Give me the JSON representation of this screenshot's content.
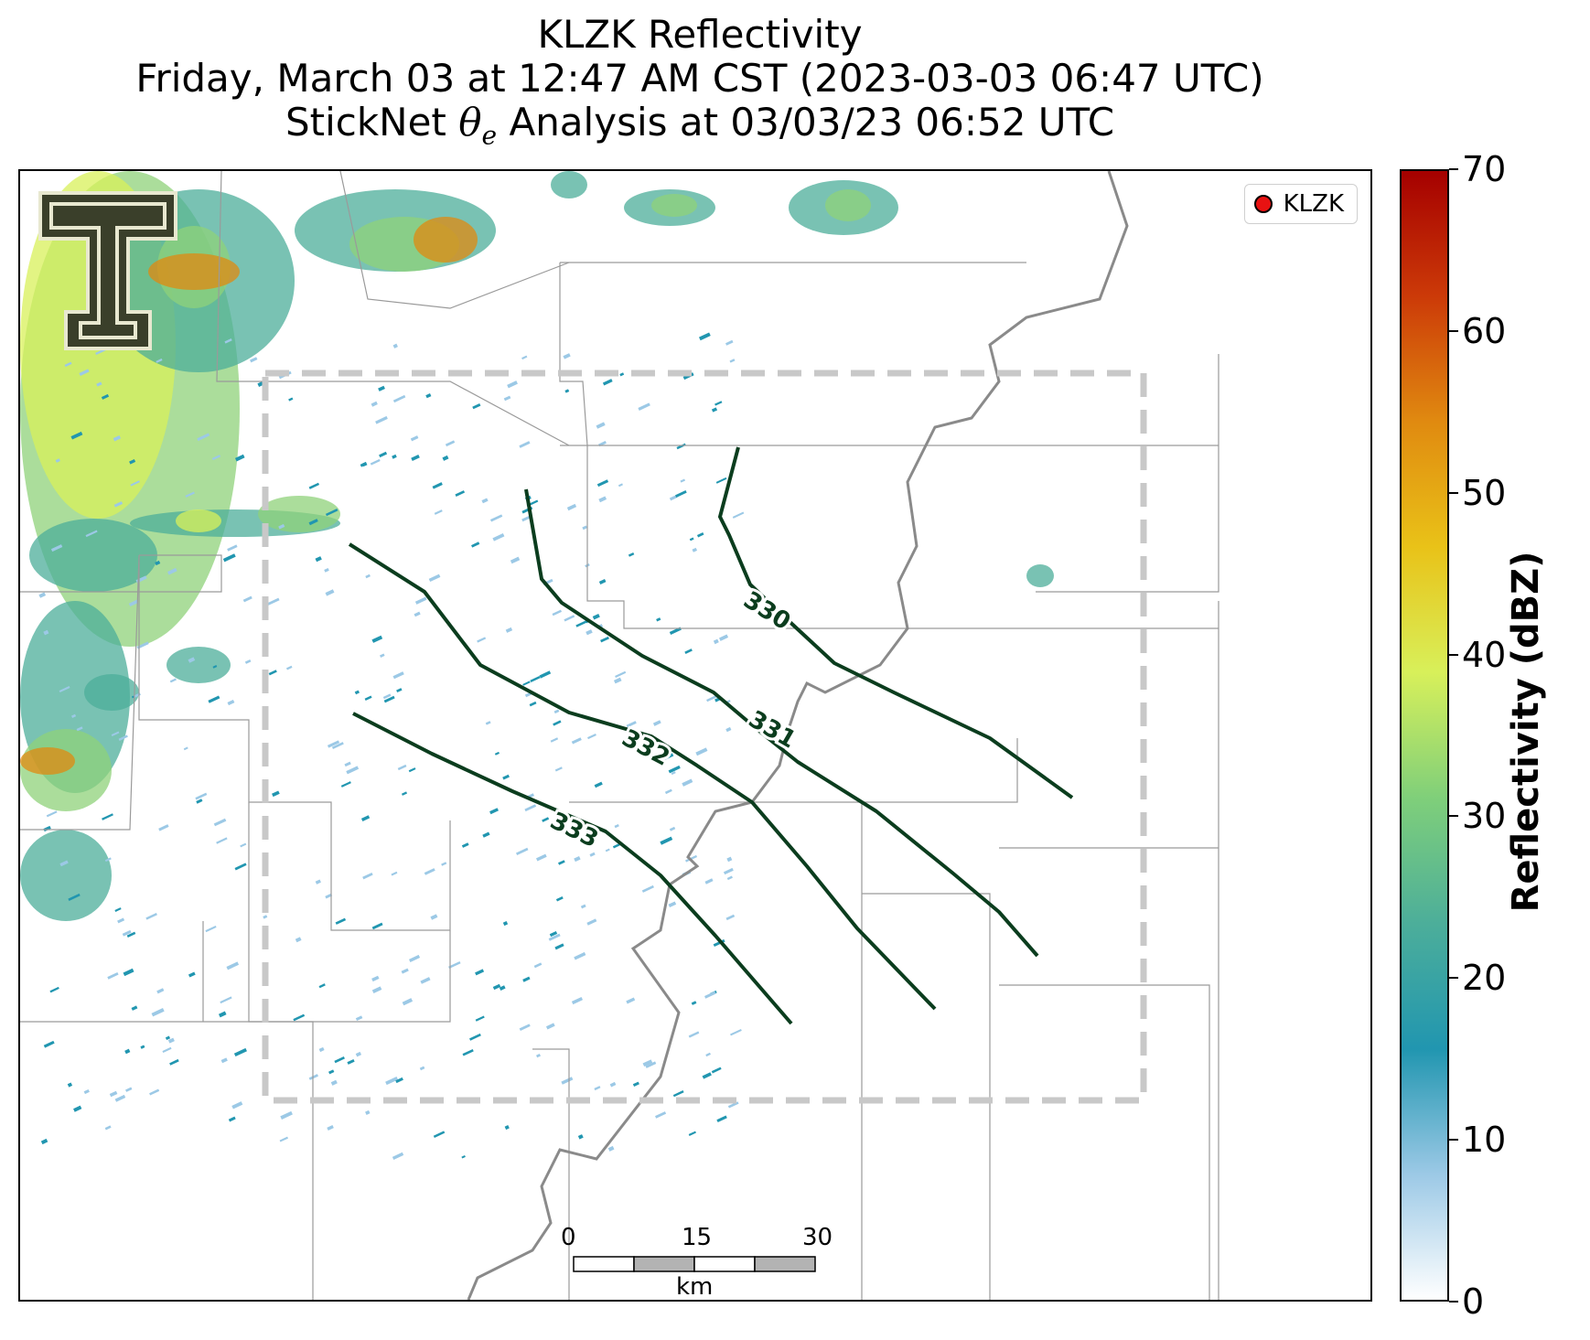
{
  "title": {
    "line1": "KLZK Reflectivity",
    "line2": "Friday, March 03 at 12:47 AM CST (2023-03-03 06:47 UTC)",
    "line3_prefix": "StickNet ",
    "line3_theta": "θ",
    "line3_sub": "e",
    "line3_suffix": " Analysis at 03/03/23 06:52 UTC"
  },
  "legend": {
    "label": "KLZK",
    "marker_color": "#e81212"
  },
  "colorbar": {
    "label": "Reflectivity (dBZ)",
    "min": 0,
    "max": 70,
    "ticks": [
      "0",
      "10",
      "20",
      "30",
      "40",
      "50",
      "60",
      "70"
    ],
    "colors": [
      "#ffffff",
      "#9cc9e6",
      "#2196b0",
      "#4cae9a",
      "#7fcf7a",
      "#d8f05a",
      "#e9c218",
      "#e08a10",
      "#cc3a08",
      "#a50000"
    ]
  },
  "contours": {
    "color": "#0b3d1e",
    "labels": [
      "330",
      "331",
      "332",
      "333"
    ]
  },
  "scalebar": {
    "ticks": [
      "0",
      "15",
      "30"
    ],
    "unit": "km"
  },
  "colors": {
    "analysis_box": "#c8c8c8",
    "state_border": "#8a8a8a",
    "county_border": "#9a9a9a",
    "logo_fill": "#3a3f2a"
  }
}
